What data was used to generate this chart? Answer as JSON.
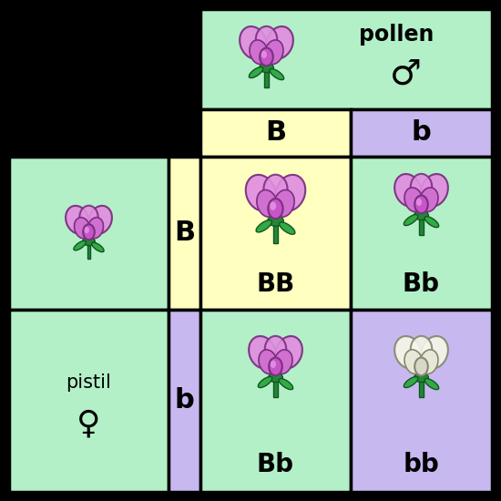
{
  "background_color": "#000000",
  "green_color": "#b3f0c8",
  "yellow_color": "#ffffc0",
  "purple_color": "#c8b8f0",
  "pollen_label": "pollen",
  "male_symbol": "♂",
  "pistil_label": "pistil",
  "female_symbol": "♀",
  "col_headers": [
    "B",
    "b"
  ],
  "row_headers": [
    "B",
    "b"
  ],
  "cell_genotypes": [
    [
      "BB",
      "Bb"
    ],
    [
      "Bb",
      "bb"
    ]
  ],
  "font_size_header": 22,
  "font_size_genotype": 20,
  "font_size_pollen": 17,
  "font_size_pistil": 15,
  "font_size_symbol": 20
}
